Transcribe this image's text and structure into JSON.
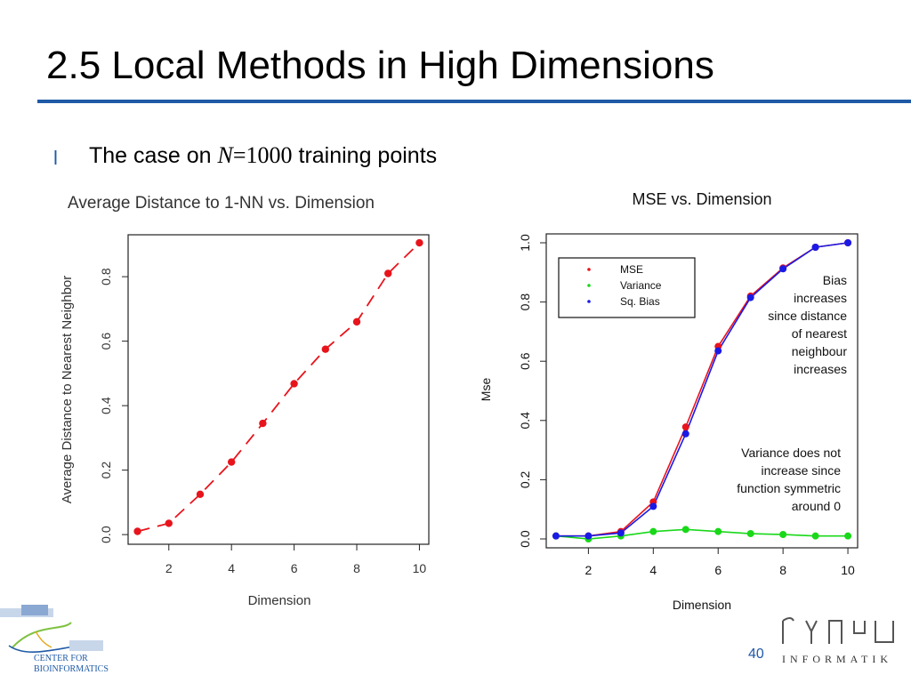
{
  "slide": {
    "title": "2.5 Local Methods in High Dimensions",
    "bullet_marker": "l",
    "bullet_prefix": "The case on ",
    "bullet_math_var": "N",
    "bullet_math_rest": "=1000",
    "bullet_suffix": " training points",
    "page_number": "40"
  },
  "logos": {
    "left_line1": "CENTER FOR",
    "left_line2": "BIOINFORMATICS",
    "right_text": "INFORMATIK"
  },
  "colors": {
    "accent": "#1f5aa6",
    "red": "#e8141c",
    "green": "#19d819",
    "blue": "#1a1ae6"
  },
  "chart_data": [
    {
      "type": "scatter",
      "title": "Average Distance to 1-NN vs. Dimension",
      "xlabel": "Dimension",
      "ylabel": "Average Distance to Nearest Neighbor",
      "xlim": [
        0.7,
        10.3
      ],
      "ylim": [
        -0.03,
        0.93
      ],
      "xticks": [
        "2",
        "4",
        "6",
        "8",
        "10"
      ],
      "yticks": [
        "0.0",
        "0.2",
        "0.4",
        "0.6",
        "0.8"
      ],
      "x": [
        1,
        2,
        3,
        4,
        5,
        6,
        7,
        8,
        9,
        10
      ],
      "values": [
        0.01,
        0.035,
        0.125,
        0.225,
        0.345,
        0.468,
        0.575,
        0.66,
        0.81,
        0.905
      ],
      "line_style": "dashed"
    },
    {
      "type": "line",
      "title": "MSE vs. Dimension",
      "xlabel": "Dimension",
      "ylabel": "Mse",
      "xlim": [
        0.7,
        10.3
      ],
      "ylim": [
        -0.03,
        1.03
      ],
      "xticks": [
        "2",
        "4",
        "6",
        "8",
        "10"
      ],
      "yticks": [
        "0.0",
        "0.2",
        "0.4",
        "0.6",
        "0.8",
        "1.0"
      ],
      "x": [
        1,
        2,
        3,
        4,
        5,
        6,
        7,
        8,
        9,
        10
      ],
      "series": [
        {
          "name": "MSE",
          "values": [
            0.01,
            0.01,
            0.025,
            0.125,
            0.378,
            0.65,
            0.82,
            0.915,
            0.985,
            1.0
          ]
        },
        {
          "name": "Variance",
          "values": [
            0.01,
            0.0,
            0.01,
            0.025,
            0.032,
            0.025,
            0.018,
            0.015,
            0.01,
            0.01
          ]
        },
        {
          "name": "Sq. Bias",
          "values": [
            0.01,
            0.01,
            0.02,
            0.11,
            0.355,
            0.635,
            0.815,
            0.912,
            0.985,
            1.0
          ]
        }
      ],
      "legend": {
        "position": "top-left",
        "entries": [
          "MSE",
          "Variance",
          "Sq. Bias"
        ]
      },
      "annotations": [
        {
          "id": "bias",
          "lines": [
            "Bias",
            "increases",
            "since distance",
            "of nearest",
            "neighbour",
            "increases"
          ]
        },
        {
          "id": "variance",
          "lines": [
            "Variance does not",
            "increase since",
            "function symmetric",
            "around 0"
          ]
        }
      ]
    }
  ]
}
